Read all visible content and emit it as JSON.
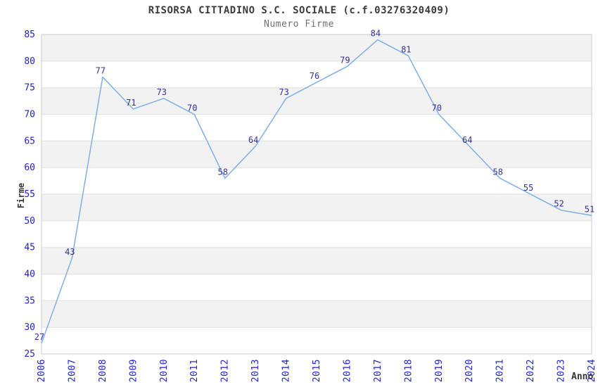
{
  "title": "RISORSA CITTADINO S.C. SOCIALE (c.f.03276320409)",
  "subtitle": "Numero Firme",
  "chart_data": {
    "type": "line",
    "title": "RISORSA CITTADINO S.C. SOCIALE (c.f.03276320409)",
    "subtitle": "Numero Firme",
    "xlabel": "Anno",
    "ylabel": "Firme",
    "x": [
      "2006",
      "2007",
      "2008",
      "2009",
      "2010",
      "2011",
      "2012",
      "2013",
      "2014",
      "2015",
      "2016",
      "2017",
      "2018",
      "2019",
      "2020",
      "2021",
      "2022",
      "2023",
      "2024"
    ],
    "values": [
      27,
      43,
      77,
      71,
      73,
      70,
      58,
      64,
      73,
      76,
      79,
      84,
      81,
      70,
      64,
      58,
      55,
      52,
      51
    ],
    "ylim": [
      25,
      85
    ],
    "ytick_step": 5,
    "grid": true,
    "legend": false,
    "point_labels_visible": true
  },
  "colors": {
    "line": "#7db0e8",
    "data_label": "#333399",
    "tick_label": "#2323cb",
    "band": "#f2f2f2",
    "gridline": "#e0e0e0",
    "border": "#cccccc",
    "title": "#3c3c3c",
    "subtitle": "#707070",
    "axis_title": "#333333"
  }
}
